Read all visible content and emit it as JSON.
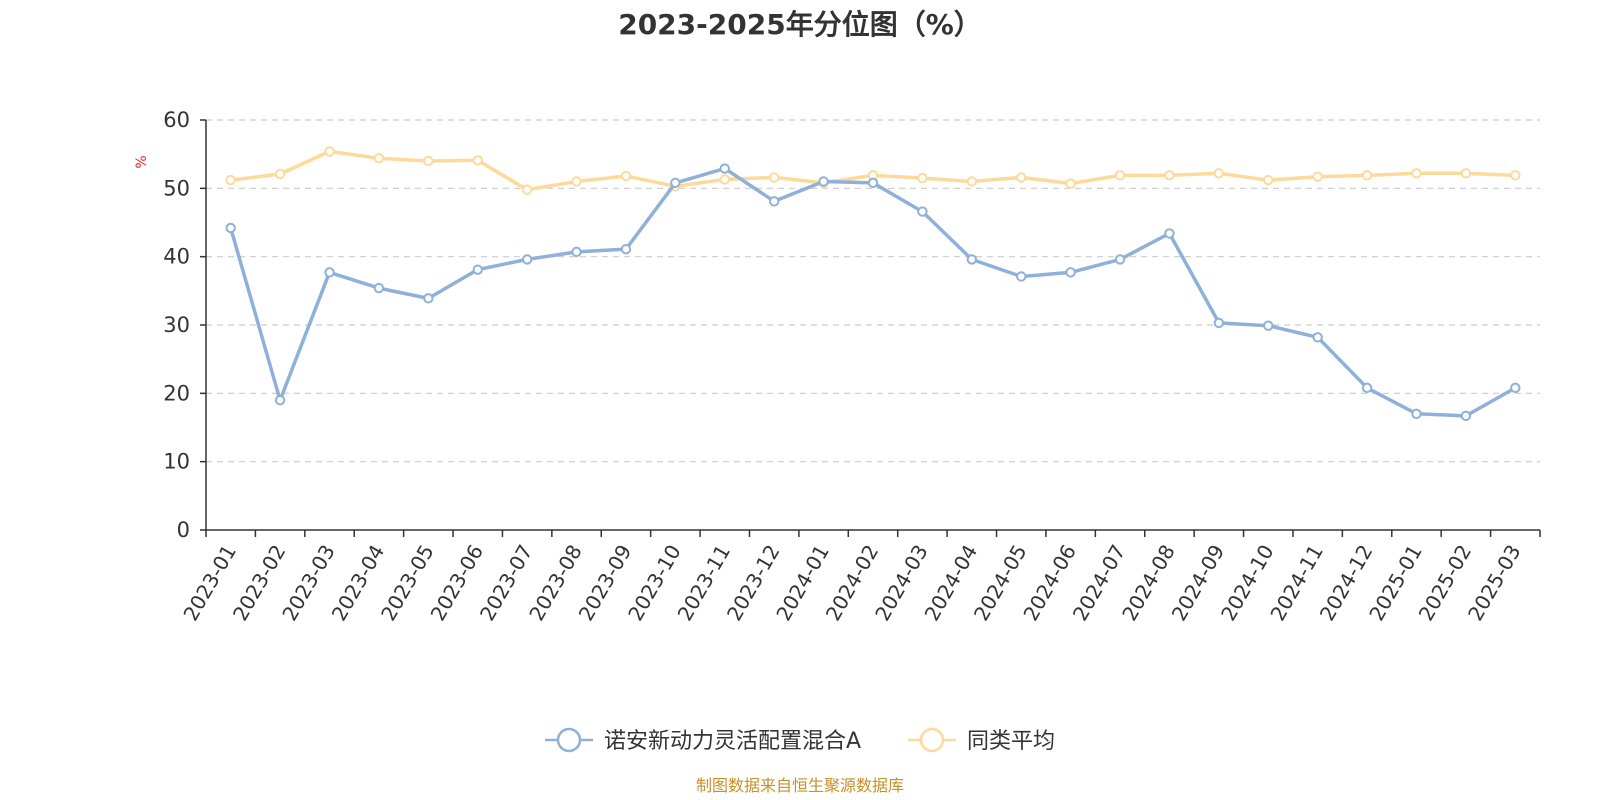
{
  "chart_data": {
    "type": "line",
    "title": "2023-2025年分位图（%）",
    "ylabel": "%",
    "ylim": [
      0,
      60
    ],
    "yticks": [
      0,
      10,
      20,
      30,
      40,
      50,
      60
    ],
    "grid": "horizontal-dashed",
    "legend_position": "bottom-center",
    "categories": [
      "2023-01",
      "2023-02",
      "2023-03",
      "2023-04",
      "2023-05",
      "2023-06",
      "2023-07",
      "2023-08",
      "2023-09",
      "2023-10",
      "2023-11",
      "2023-12",
      "2024-01",
      "2024-02",
      "2024-03",
      "2024-04",
      "2024-05",
      "2024-06",
      "2024-07",
      "2024-08",
      "2024-09",
      "2024-10",
      "2024-11",
      "2024-12",
      "2025-01",
      "2025-02",
      "2025-03"
    ],
    "series": [
      {
        "name": "诺安新动力灵活配置混合A",
        "color": "#8eb0d9",
        "values": [
          44.2,
          19.0,
          37.7,
          35.4,
          33.9,
          38.1,
          39.6,
          40.7,
          41.1,
          50.8,
          52.9,
          48.1,
          51.0,
          50.8,
          46.6,
          39.6,
          37.1,
          37.7,
          39.6,
          43.4,
          30.3,
          29.9,
          28.2,
          20.8,
          17.0,
          16.7,
          20.8
        ]
      },
      {
        "name": "同类平均",
        "color": "#fdd99a",
        "values": [
          51.2,
          52.1,
          55.4,
          54.4,
          54.0,
          54.1,
          49.8,
          51.0,
          51.8,
          50.3,
          51.3,
          51.6,
          50.8,
          51.9,
          51.5,
          51.0,
          51.6,
          50.7,
          51.9,
          51.9,
          52.2,
          51.2,
          51.7,
          51.9,
          52.2,
          52.2,
          51.9
        ]
      }
    ]
  },
  "footer": {
    "source": "制图数据来自恒生聚源数据库"
  }
}
